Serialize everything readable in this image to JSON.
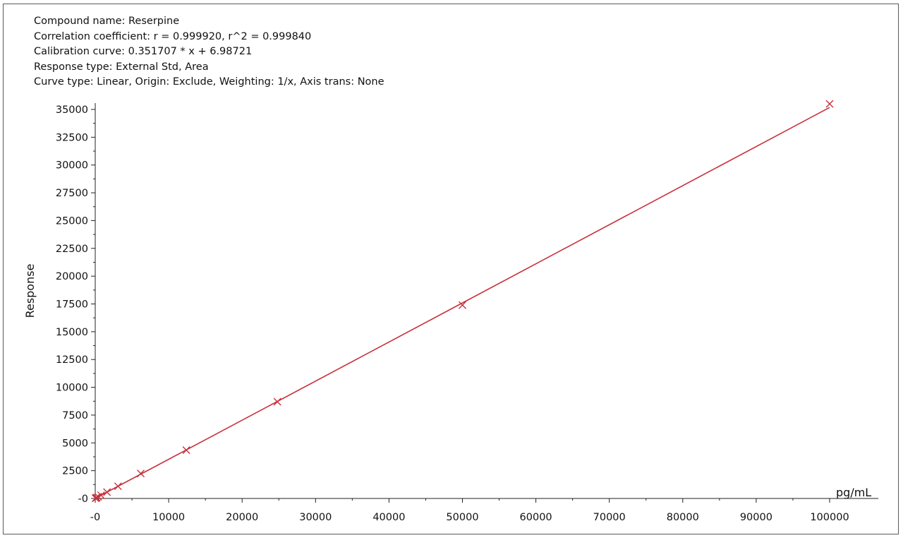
{
  "header": {
    "compound_name": "Compound name: Reserpine",
    "correlation": "Correlation coefficient: r = 0.999920, r^2 = 0.999840",
    "calibration_curve": "Calibration curve: 0.351707 * x + 6.98721",
    "response_type": "Response type: External Std, Area",
    "curve_type": "Curve type: Linear, Origin: Exclude, Weighting: 1/x, Axis trans: None"
  },
  "colors": {
    "series": "#c8303c",
    "axis": "#222222"
  },
  "chart_data": {
    "type": "scatter",
    "title": "",
    "xlabel": "pg/mL",
    "ylabel": "Response",
    "xlim": [
      0,
      100000
    ],
    "ylim": [
      0,
      35000
    ],
    "x_ticks": [
      0,
      10000,
      20000,
      30000,
      40000,
      50000,
      60000,
      70000,
      80000,
      90000,
      100000
    ],
    "x_tick_labels": [
      "-0",
      "10000",
      "20000",
      "30000",
      "40000",
      "50000",
      "60000",
      "70000",
      "80000",
      "90000",
      "100000"
    ],
    "y_ticks": [
      0,
      2500,
      5000,
      7500,
      10000,
      12500,
      15000,
      17500,
      20000,
      22500,
      25000,
      27500,
      30000,
      32500,
      35000
    ],
    "y_tick_labels": [
      "-0",
      "2500",
      "5000",
      "7500",
      "10000",
      "12500",
      "15000",
      "17500",
      "20000",
      "22500",
      "25000",
      "27500",
      "30000",
      "32500",
      "35000"
    ],
    "grid": false,
    "fit_line": {
      "slope": 0.351707,
      "intercept": 6.98721,
      "x_range": [
        0,
        100000
      ]
    },
    "series": [
      {
        "marker": "x",
        "x": [
          50,
          100,
          200,
          400,
          800,
          1600,
          3100,
          6200,
          12400,
          24800,
          50000,
          100000
        ],
        "y": [
          25,
          45,
          80,
          150,
          290,
          570,
          1100,
          2250,
          4350,
          8700,
          17400,
          35500
        ]
      }
    ]
  }
}
